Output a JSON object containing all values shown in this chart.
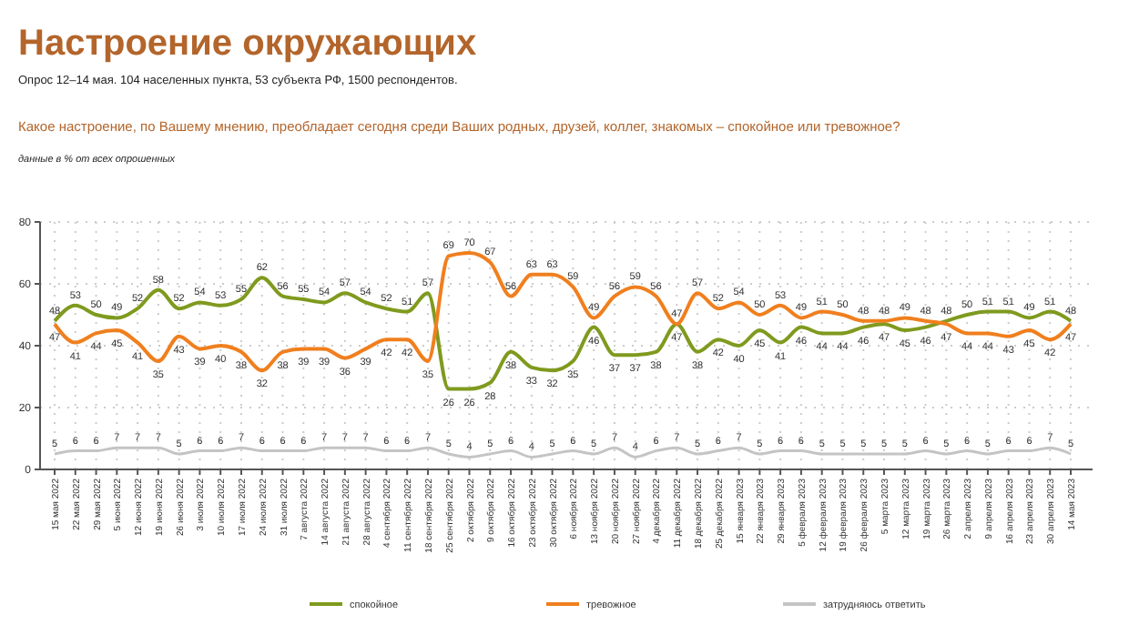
{
  "chart_data": {
    "type": "line",
    "title": "Настроение окружающих",
    "subtitle": "Опрос 12–14 мая. 104 населенных пункта, 53 субъекта РФ, 1500 респондентов.",
    "annotations": [
      "Какое настроение, по Вашему мнению, преобладает сегодня среди Ваших родных, друзей, коллег, знакомых – спокойное или тревожное?",
      "данные в % от всех опрошенных"
    ],
    "categories": [
      "15 мая 2022",
      "22 мая 2022",
      "29 мая 2022",
      "5 июня 2022",
      "12 июня 2022",
      "19 июня 2022",
      "26 июня 2022",
      "3 июля 2022",
      "10 июля 2022",
      "17 июля 2022",
      "24 июля 2022",
      "31 июля 2022",
      "7 августа 2022",
      "14 августа 2022",
      "21 августа 2022",
      "28 августа 2022",
      "4 сентября 2022",
      "11 сентября 2022",
      "18 сентября 2022",
      "25 сентября 2022",
      "2 октября 2022",
      "9 октября 2022",
      "16 октября 2022",
      "23 октября 2022",
      "30 октября 2022",
      "6 ноября 2022",
      "13 ноября 2022",
      "20 ноября 2022",
      "27 ноября 2022",
      "4 декабря 2022",
      "11 декабря 2022",
      "18 декабря 2022",
      "25 декабря 2022",
      "15 января 2023",
      "22 января 2023",
      "29 января 2023",
      "5 февраля 2023",
      "12 февраля 2023",
      "19 февраля 2023",
      "26 февраля 2023",
      "5 марта 2023",
      "12 марта 2023",
      "19 марта 2023",
      "26 марта 2023",
      "2 апреля 2023",
      "9 апреля 2023",
      "16 апреля 2023",
      "23 апреля 2023",
      "30 апреля 2023",
      "14 мая 2023"
    ],
    "series": [
      {
        "name": "спокойное",
        "color": "#7f9a1e",
        "values": [
          48,
          53,
          50,
          49,
          52,
          58,
          52,
          54,
          53,
          55,
          62,
          56,
          55,
          54,
          57,
          54,
          52,
          51,
          57,
          26,
          26,
          28,
          38,
          33,
          32,
          35,
          46,
          37,
          37,
          38,
          47,
          38,
          42,
          40,
          45,
          41,
          46,
          44,
          44,
          46,
          47,
          45,
          46,
          48,
          50,
          51,
          51,
          49,
          51,
          48
        ]
      },
      {
        "name": "тревожное",
        "color": "#f07f1e",
        "values": [
          47,
          41,
          44,
          45,
          41,
          35,
          43,
          39,
          40,
          38,
          32,
          38,
          39,
          39,
          36,
          39,
          42,
          42,
          35,
          69,
          70,
          67,
          56,
          63,
          63,
          59,
          49,
          56,
          59,
          56,
          47,
          57,
          52,
          54,
          50,
          53,
          49,
          51,
          50,
          48,
          48,
          49,
          48,
          47,
          44,
          44,
          43,
          45,
          42,
          47
        ]
      },
      {
        "name": "затрудняюсь ответить",
        "color": "#c4c4c4",
        "values": [
          5,
          6,
          6,
          7,
          7,
          7,
          5,
          6,
          6,
          7,
          6,
          6,
          6,
          7,
          7,
          7,
          6,
          6,
          7,
          5,
          4,
          5,
          6,
          4,
          5,
          6,
          5,
          7,
          4,
          6,
          7,
          5,
          6,
          7,
          5,
          6,
          6,
          5,
          5,
          5,
          5,
          5,
          6,
          5,
          6,
          5,
          6,
          6,
          7,
          5
        ]
      }
    ],
    "ylim": [
      0,
      80
    ],
    "yticks": [
      0,
      20,
      40,
      60,
      80
    ],
    "grid": true,
    "legend": "bottom",
    "data_labels": true,
    "marker": "none",
    "line_style": "solid"
  }
}
